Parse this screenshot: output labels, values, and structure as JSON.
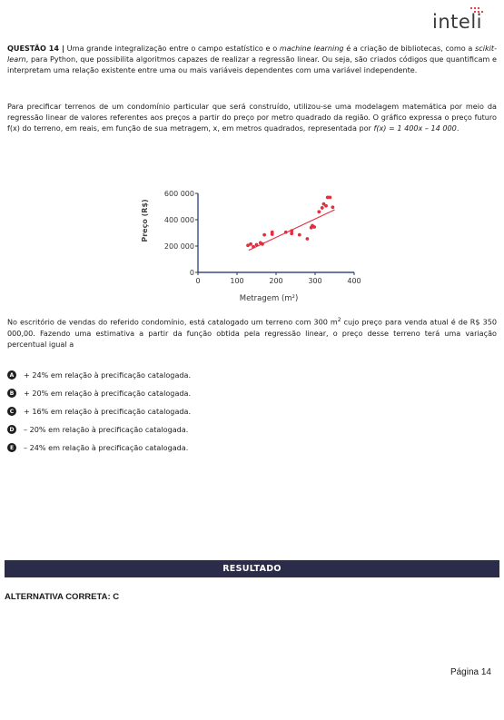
{
  "header": {
    "logo_text": "inteli",
    "logo_accent": "#e0303f"
  },
  "question": {
    "number_label": "QUESTÃO 14 |",
    "p1_a": " Uma grande integralização entre o campo estatístico e o ",
    "p1_em1": "machine learning",
    "p1_b": " é a criação de bibliotecas, como a ",
    "p1_em2": "scikit-learn",
    "p1_c": ", para Python, que possibilita algoritmos capazes de realizar a regressão linear. Ou seja, são criados códigos que quantificam e interpretam uma relação existente entre uma ou mais variáveis dependentes com uma variável independente.",
    "p2_a": "Para precificar terrenos de um condomínio particular que será construído, utilizou-se uma modelagem matemática por meio da regressão linear de valores referentes aos preços a partir do preço por metro quadrado da região. O gráfico expressa o preço futuro f(x) do terreno, em reais, em função de sua metragem, x, em metros quadrados, representada por ",
    "p2_formula": "f(x) = 1 400x – 14 000",
    "p2_b": ".",
    "p3_a": "No escritório de vendas do referido condomínio, está catalogado um terreno com 300 m",
    "p3_sup": "2",
    "p3_b": " cujo preço para venda atual é de R$ 350 000,00. Fazendo uma estimativa a partir da função obtida pela regressão linear, o preço desse terreno terá uma variação percentual igual a"
  },
  "chart_data": {
    "type": "scatter",
    "xlabel": "Metragem (m²)",
    "ylabel": "Preço (R$)",
    "xlim": [
      0,
      400
    ],
    "ylim": [
      0,
      600000
    ],
    "x_ticks": [
      0,
      100,
      200,
      300,
      400
    ],
    "x_tick_labels": [
      "0",
      "100",
      "200",
      "300",
      "400"
    ],
    "y_ticks": [
      0,
      200000,
      400000,
      600000
    ],
    "y_tick_labels": [
      "0",
      "200 000",
      "400 000",
      "600 000"
    ],
    "grid": false,
    "point_color": "#e0303f",
    "line_color": "#e0303f",
    "axis_color": "#3a4a8a",
    "trendline": {
      "x": [
        130,
        350
      ],
      "y": [
        168000,
        476000
      ]
    },
    "points": [
      {
        "x": 128,
        "y": 205000
      },
      {
        "x": 135,
        "y": 215000
      },
      {
        "x": 142,
        "y": 195000
      },
      {
        "x": 150,
        "y": 210000
      },
      {
        "x": 160,
        "y": 225000
      },
      {
        "x": 165,
        "y": 215000
      },
      {
        "x": 170,
        "y": 285000
      },
      {
        "x": 190,
        "y": 290000
      },
      {
        "x": 190,
        "y": 305000
      },
      {
        "x": 225,
        "y": 305000
      },
      {
        "x": 240,
        "y": 315000
      },
      {
        "x": 240,
        "y": 295000
      },
      {
        "x": 260,
        "y": 285000
      },
      {
        "x": 280,
        "y": 255000
      },
      {
        "x": 290,
        "y": 340000
      },
      {
        "x": 293,
        "y": 355000
      },
      {
        "x": 298,
        "y": 345000
      },
      {
        "x": 310,
        "y": 460000
      },
      {
        "x": 318,
        "y": 490000
      },
      {
        "x": 322,
        "y": 520000
      },
      {
        "x": 328,
        "y": 505000
      },
      {
        "x": 332,
        "y": 570000
      },
      {
        "x": 338,
        "y": 570000
      },
      {
        "x": 345,
        "y": 495000
      }
    ]
  },
  "options": [
    {
      "letter": "A",
      "text": "+ 24% em relação à precificação catalogada."
    },
    {
      "letter": "B",
      "text": "+ 20% em relação à precificação catalogada."
    },
    {
      "letter": "C",
      "text": "+ 16% em relação à precificação catalogada."
    },
    {
      "letter": "D",
      "text": "– 20% em relação à precificação catalogada."
    },
    {
      "letter": "E",
      "text": "– 24% em relação à precificação catalogada."
    }
  ],
  "result": {
    "bar_label": "RESULTADO",
    "answer": "ALTERNATIVA CORRETA: C"
  },
  "footer": {
    "page": "Página 14"
  }
}
